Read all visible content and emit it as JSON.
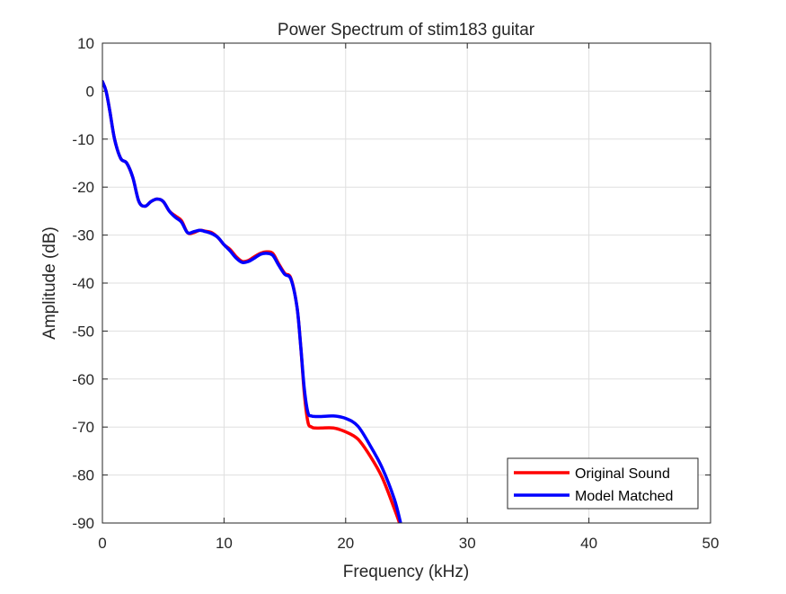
{
  "chart_data": {
    "type": "line",
    "title": "Power Spectrum of stim183 guitar",
    "xlabel": "Frequency (kHz)",
    "ylabel": "Amplitude (dB)",
    "xlim": [
      0,
      50
    ],
    "ylim": [
      -90,
      10
    ],
    "xticks": [
      0,
      10,
      20,
      30,
      40,
      50
    ],
    "yticks": [
      10,
      0,
      -10,
      -20,
      -30,
      -40,
      -50,
      -60,
      -70,
      -80,
      -90
    ],
    "grid": true,
    "legend_location": "bottom-right",
    "series": [
      {
        "name": "Original Sound",
        "color": "#ff0000",
        "x": [
          0,
          0.3,
          0.6,
          1.0,
          1.5,
          2.0,
          2.5,
          3.0,
          3.5,
          4.0,
          4.5,
          5.0,
          5.5,
          6.0,
          6.5,
          7.0,
          7.5,
          8.0,
          8.5,
          9.0,
          9.5,
          10.0,
          10.5,
          11.0,
          11.5,
          12.0,
          12.5,
          13.0,
          13.5,
          14.0,
          14.5,
          15.0,
          15.5,
          16.0,
          16.3,
          16.6,
          16.9,
          17.2,
          17.5,
          18.0,
          19.0,
          20.0,
          21.0,
          22.0,
          23.0,
          24.0,
          24.5
        ],
        "y": [
          2,
          0,
          -4,
          -10,
          -14,
          -15,
          -18,
          -23,
          -24,
          -23,
          -22.5,
          -23,
          -25,
          -26,
          -27,
          -29.5,
          -29.5,
          -29,
          -29.2,
          -29.5,
          -30.5,
          -32,
          -33,
          -34.5,
          -35.5,
          -35.3,
          -34.5,
          -33.8,
          -33.5,
          -33.8,
          -36,
          -38,
          -39,
          -45,
          -53,
          -63,
          -69,
          -70,
          -70.2,
          -70.2,
          -70.2,
          -71,
          -72.5,
          -76,
          -80.5,
          -87,
          -90.5
        ]
      },
      {
        "name": "Model Matched",
        "color": "#0000ff",
        "x": [
          0,
          0.3,
          0.6,
          1.0,
          1.5,
          2.0,
          2.5,
          3.0,
          3.5,
          4.0,
          4.5,
          5.0,
          5.5,
          6.0,
          6.5,
          7.0,
          7.5,
          8.0,
          8.5,
          9.0,
          9.5,
          10.0,
          10.5,
          11.0,
          11.5,
          12.0,
          12.5,
          13.0,
          13.5,
          14.0,
          14.5,
          15.0,
          15.5,
          16.0,
          16.3,
          16.6,
          16.9,
          17.2,
          17.5,
          18.0,
          19.0,
          20.0,
          21.0,
          22.0,
          23.0,
          24.0,
          24.5
        ],
        "y": [
          2,
          0,
          -4,
          -10,
          -14,
          -15,
          -18,
          -23,
          -24,
          -23,
          -22.5,
          -23,
          -25,
          -26.3,
          -27.3,
          -29.5,
          -29.3,
          -29,
          -29.3,
          -29.7,
          -30.5,
          -32,
          -33.3,
          -34.8,
          -35.7,
          -35.5,
          -34.8,
          -34.0,
          -33.8,
          -34.2,
          -36.3,
          -38.2,
          -39.2,
          -45,
          -53,
          -62,
          -67,
          -67.7,
          -67.8,
          -67.8,
          -67.7,
          -68.2,
          -69.8,
          -73.8,
          -78.5,
          -85,
          -89.8
        ]
      }
    ]
  }
}
